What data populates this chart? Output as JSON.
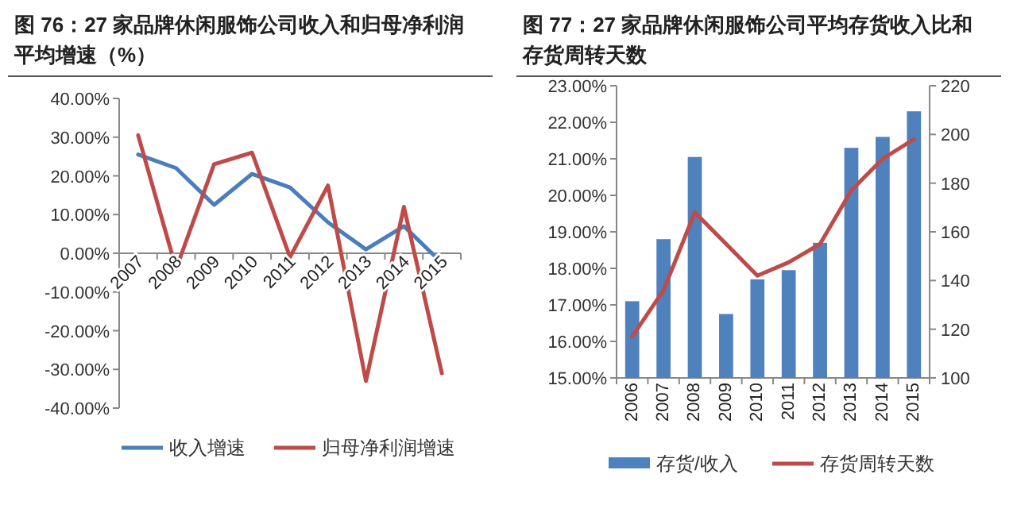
{
  "chart_data": [
    {
      "type": "line",
      "title": "图 76：27 家品牌休闲服饰公司收入和归母净利润平均增速（%）",
      "categories": [
        "2007",
        "2008",
        "2009",
        "2010",
        "2011",
        "2012",
        "2013",
        "2014",
        "2015"
      ],
      "ylim": [
        -40,
        40
      ],
      "yticks": [
        {
          "value": -40,
          "label": "-40.00%"
        },
        {
          "value": -30,
          "label": "-30.00%"
        },
        {
          "value": -20,
          "label": "-20.00%"
        },
        {
          "value": -10,
          "label": "-10.00%"
        },
        {
          "value": 0,
          "label": "0.00%"
        },
        {
          "value": 10,
          "label": "10.00%"
        },
        {
          "value": 20,
          "label": "20.00%"
        },
        {
          "value": 30,
          "label": "30.00%"
        },
        {
          "value": 40,
          "label": "40.00%"
        }
      ],
      "series": [
        {
          "name": "收入增速",
          "color": "#4a7ebb",
          "values": [
            25.5,
            22,
            12.5,
            20.5,
            17,
            8,
            1,
            7,
            -2.5
          ]
        },
        {
          "name": "归母净利润增速",
          "color": "#be4b48",
          "values": [
            30.5,
            -4,
            23,
            26,
            -1,
            17.5,
            -33,
            12,
            -31
          ]
        }
      ],
      "legend": "bottom"
    },
    {
      "type": "bar",
      "title": "图 77：27 家品牌休闲服饰公司平均存货收入比和存货周转天数",
      "categories": [
        "2006",
        "2007",
        "2008",
        "2009",
        "2010",
        "2011",
        "2012",
        "2013",
        "2014",
        "2015"
      ],
      "ylim": [
        15,
        23
      ],
      "yticks": [
        {
          "value": 15,
          "label": "15.00%"
        },
        {
          "value": 16,
          "label": "16.00%"
        },
        {
          "value": 17,
          "label": "17.00%"
        },
        {
          "value": 18,
          "label": "18.00%"
        },
        {
          "value": 19,
          "label": "19.00%"
        },
        {
          "value": 20,
          "label": "20.00%"
        },
        {
          "value": 21,
          "label": "21.00%"
        },
        {
          "value": 22,
          "label": "22.00%"
        },
        {
          "value": 23,
          "label": "23.00%"
        }
      ],
      "y2lim": [
        100,
        220
      ],
      "y2ticks": [
        100,
        120,
        140,
        160,
        180,
        200,
        220
      ],
      "series": [
        {
          "name": "存货/收入",
          "color": "#4f81bd",
          "values": [
            17.1,
            18.8,
            21.05,
            16.75,
            17.7,
            17.95,
            18.7,
            21.3,
            21.6,
            22.3
          ]
        },
        {
          "name": "存货周转天数",
          "type": "line",
          "axis": "y2",
          "color": "#be4b48",
          "values": [
            117,
            136,
            168,
            155,
            142,
            147.5,
            155,
            177,
            190,
            198
          ]
        }
      ],
      "legend": "bottom"
    }
  ]
}
